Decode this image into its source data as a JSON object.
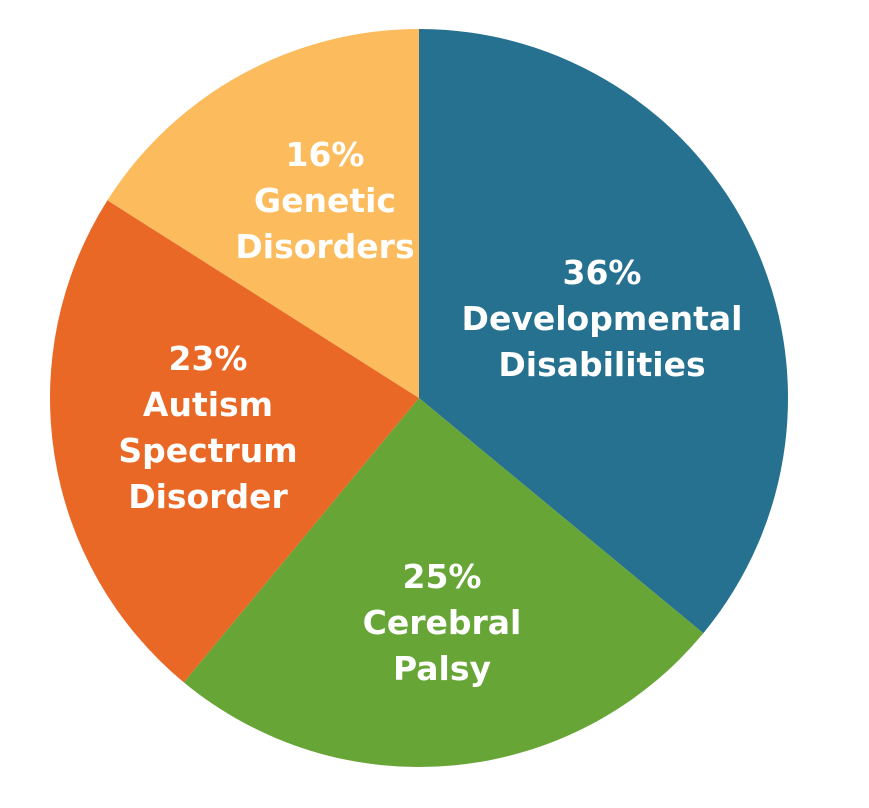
{
  "chart_data": {
    "type": "pie",
    "title": "",
    "start_angle_deg": 0,
    "direction": "clockwise",
    "slices": [
      {
        "label_lines": [
          "36%",
          "Developmental",
          "Disabilities"
        ],
        "category": "Developmental Disabilities",
        "value": 36,
        "color": "#25718f"
      },
      {
        "label_lines": [
          "25%",
          "Cerebral",
          "Palsy"
        ],
        "category": "Cerebral Palsy",
        "value": 25,
        "color": "#67a536"
      },
      {
        "label_lines": [
          "23%",
          "Autism",
          "Spectrum",
          "Disorder"
        ],
        "category": "Autism Spectrum Disorder",
        "value": 23,
        "color": "#ea6826"
      },
      {
        "label_lines": [
          "16%",
          "Genetic",
          "Disorders"
        ],
        "category": "Genetic Disorders",
        "value": 16,
        "color": "#fcbc5d"
      }
    ]
  }
}
